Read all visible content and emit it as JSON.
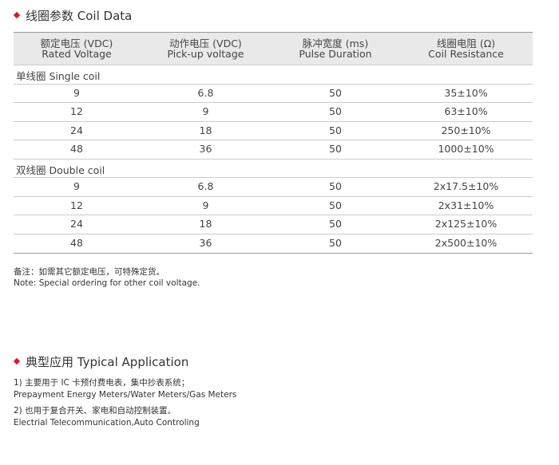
{
  "section1": {
    "title": "线圈参数 Coil Data"
  },
  "table": {
    "header": [
      [
        "额定电压 (VDC)",
        "Rated Voltage"
      ],
      [
        "动作电压 (VDC)",
        "Pick-up voltage"
      ],
      [
        "脉冲宽度 (ms)",
        "Pulse Duration"
      ],
      [
        "线圈电阻 (Ω)",
        "Coil Resistance"
      ]
    ],
    "groups": [
      {
        "label": "单线圈 Single coil",
        "rows": [
          [
            "9",
            "6.8",
            "50",
            "35±10%"
          ],
          [
            "12",
            "9",
            "50",
            "63±10%"
          ],
          [
            "24",
            "18",
            "50",
            "250±10%"
          ],
          [
            "48",
            "36",
            "50",
            "1000±10%"
          ]
        ]
      },
      {
        "label": "双线圈 Double coil",
        "rows": [
          [
            "9",
            "6.8",
            "50",
            "2x17.5±10%"
          ],
          [
            "12",
            "9",
            "50",
            "2x31±10%"
          ],
          [
            "24",
            "18",
            "50",
            "2x125±10%"
          ],
          [
            "48",
            "36",
            "50",
            "2x500±10%"
          ]
        ]
      }
    ]
  },
  "notes": [
    "备注：如需其它额定电压，可特殊定货。",
    "Note: Special ordering for other coil voltage."
  ],
  "section2": {
    "title": "典型应用 Typical Application",
    "lines": [
      "1) 主要用于 IC 卡预付费电表，集中抄表系统；",
      "Prepayment Energy Meters/Water Meters/Gas Meters",
      "2) 也用于复合开关、家电和自动控制装置。",
      "Electrial Telecommunication,Auto Controling"
    ]
  }
}
